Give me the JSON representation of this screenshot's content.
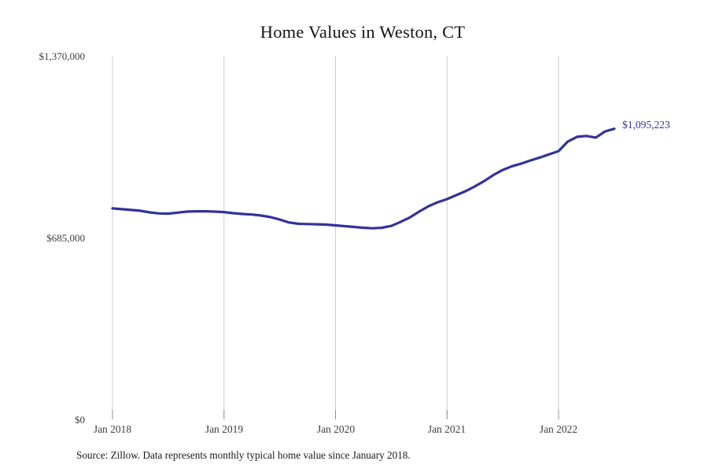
{
  "page": {
    "background": "#ffffff"
  },
  "chart": {
    "title": "Home Values in Weston, CT",
    "end_label": "$1,095,223",
    "source_note": "Source: Zillow. Data represents monthly typical home value since January 2018.",
    "colors": {
      "line": "#32329b",
      "gridline": "#cbcbcb",
      "tick": "#8f8f8f",
      "title_text": "#151515",
      "axis_text": "#3d3d3d"
    }
  },
  "chart_data": {
    "type": "line",
    "title": "Home Values in Weston, CT",
    "xlabel": "",
    "ylabel": "",
    "ylim": [
      0,
      1370000
    ],
    "grid": "vertical-only",
    "legend": "none",
    "x": [
      "2018-01",
      "2018-02",
      "2018-03",
      "2018-04",
      "2018-05",
      "2018-06",
      "2018-07",
      "2018-08",
      "2018-09",
      "2018-10",
      "2018-11",
      "2018-12",
      "2019-01",
      "2019-02",
      "2019-03",
      "2019-04",
      "2019-05",
      "2019-06",
      "2019-07",
      "2019-08",
      "2019-09",
      "2019-10",
      "2019-11",
      "2019-12",
      "2020-01",
      "2020-02",
      "2020-03",
      "2020-04",
      "2020-05",
      "2020-06",
      "2020-07",
      "2020-08",
      "2020-09",
      "2020-10",
      "2020-11",
      "2020-12",
      "2021-01",
      "2021-02",
      "2021-03",
      "2021-04",
      "2021-05",
      "2021-06",
      "2021-07",
      "2021-08",
      "2021-09",
      "2021-10",
      "2021-11",
      "2021-12",
      "2022-01",
      "2022-02",
      "2022-03",
      "2022-04",
      "2022-05",
      "2022-06",
      "2022-07"
    ],
    "series": [
      {
        "name": "Typical home value (USD)",
        "values": [
          795000,
          792000,
          789000,
          786000,
          780000,
          776000,
          775000,
          779000,
          783000,
          784000,
          784000,
          783000,
          781000,
          777000,
          774000,
          772000,
          768000,
          762000,
          753000,
          742000,
          737000,
          736000,
          735000,
          734000,
          731000,
          728000,
          725000,
          722000,
          720000,
          722000,
          729000,
          744000,
          761000,
          783000,
          803000,
          818000,
          830000,
          845000,
          860000,
          878000,
          898000,
          921000,
          940000,
          954000,
          964000,
          976000,
          987000,
          999000,
          1011000,
          1047000,
          1065000,
          1068000,
          1062000,
          1085000,
          1095223
        ]
      }
    ],
    "y_ticks": [
      {
        "label": "$1,370,000",
        "value": 1370000
      },
      {
        "label": "$685,000",
        "value": 685000
      },
      {
        "label": "$0",
        "value": 0
      }
    ],
    "x_ticks": [
      {
        "label": "Jan 2018",
        "month_index": 0
      },
      {
        "label": "Jan 2019",
        "month_index": 12
      },
      {
        "label": "Jan 2020",
        "month_index": 24
      },
      {
        "label": "Jan 2021",
        "month_index": 36
      },
      {
        "label": "Jan 2022",
        "month_index": 48
      }
    ],
    "annotation": {
      "text": "$1,095,223",
      "attached_to": "last-point"
    }
  }
}
